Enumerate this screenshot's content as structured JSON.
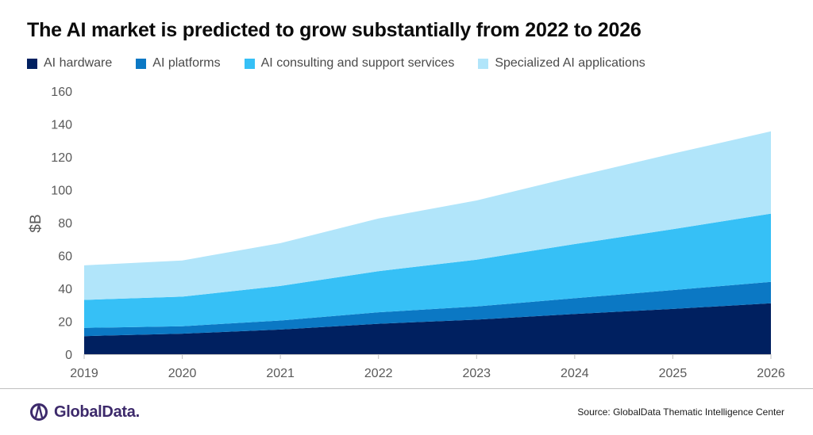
{
  "title": "The AI market is predicted to grow substantially from 2022 to 2026",
  "colors": {
    "AI hardware": "#002060",
    "AI platforms": "#0B78C4",
    "AI consulting and support services": "#36C0F6",
    "Specialized AI applications": "#B1E5FA"
  },
  "chart_data": {
    "type": "area",
    "stacked": true,
    "x": [
      "2019",
      "2020",
      "2021",
      "2022",
      "2023",
      "2024",
      "2025",
      "2026"
    ],
    "series": [
      {
        "name": "AI hardware",
        "values": [
          11,
          12.5,
          15,
          18.5,
          21,
          24.5,
          27.5,
          31
        ]
      },
      {
        "name": "AI platforms",
        "values": [
          5,
          4.5,
          5.5,
          7,
          8,
          9.5,
          11.5,
          13
        ]
      },
      {
        "name": "AI consulting and support services",
        "values": [
          17,
          18,
          21,
          25,
          28.5,
          33,
          37,
          41.5
        ]
      },
      {
        "name": "Specialized AI applications",
        "values": [
          21,
          22,
          26,
          32,
          36,
          41,
          46,
          50
        ]
      }
    ],
    "ylabel": "$B",
    "ylim": [
      0,
      160
    ],
    "yticks": [
      0,
      20,
      40,
      60,
      80,
      100,
      120,
      140,
      160
    ],
    "grid": false,
    "legend": "top"
  },
  "footer": {
    "logo_text": "GlobalData.",
    "source": "Source: GlobalData Thematic Intelligence Center"
  }
}
